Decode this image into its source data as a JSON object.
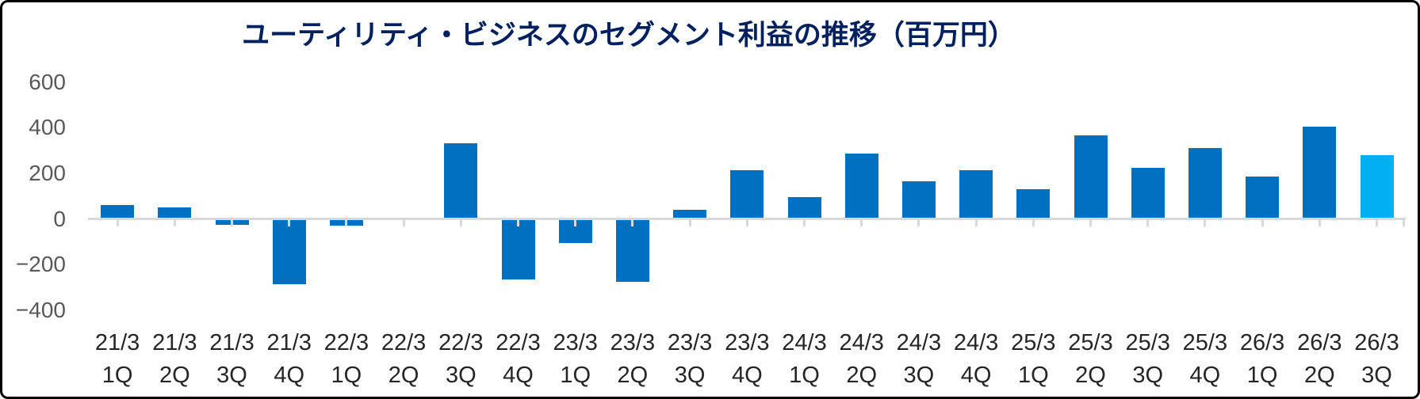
{
  "chart_data": {
    "type": "bar",
    "title": "ユーティリティ・ビジネスのセグメント利益の推移（百万円）",
    "categories": [
      "21/3 1Q",
      "21/3 2Q",
      "21/3 3Q",
      "21/3 4Q",
      "22/3 1Q",
      "22/3 2Q",
      "22/3 3Q",
      "22/3 4Q",
      "23/3 1Q",
      "23/3 2Q",
      "23/3 3Q",
      "23/3 4Q",
      "24/3 1Q",
      "24/3 2Q",
      "24/3 3Q",
      "24/3 4Q",
      "25/3 1Q",
      "25/3 2Q",
      "25/3 3Q",
      "25/3 4Q",
      "26/3 1Q",
      "26/3 2Q",
      "26/3 3Q"
    ],
    "values": [
      55,
      45,
      -20,
      -280,
      -25,
      0,
      325,
      -260,
      -100,
      -270,
      35,
      210,
      90,
      280,
      160,
      210,
      125,
      360,
      220,
      305,
      180,
      400,
      275
    ],
    "unit": "百万円",
    "ylim": [
      -400,
      600
    ],
    "y_ticks": [
      600,
      400,
      200,
      0,
      -200,
      -400
    ],
    "y_tick_labels": [
      "600",
      "400",
      "200",
      "0",
      "−200",
      "−400"
    ],
    "grid": false,
    "legend": false,
    "bar_color": "#0070c0",
    "highlight_color": "#00b0f0",
    "highlight_index": 22,
    "axis_color": "#d9d9d9",
    "title_color": "#002060",
    "y_label_color": "#595959",
    "x_label_color": "#262626"
  }
}
